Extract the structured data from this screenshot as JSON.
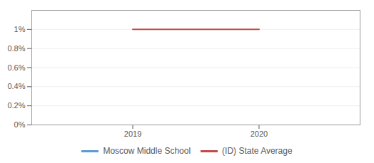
{
  "chart_data": {
    "type": "line",
    "x": [
      2019,
      2020
    ],
    "series": [
      {
        "name": "Moscow Middle School",
        "color": "#5b9bd5",
        "values": [
          null,
          null
        ]
      },
      {
        "name": "(ID) State Average",
        "color": "#be4b48",
        "values": [
          0.01,
          0.01
        ]
      }
    ],
    "xlim": [
      2018.2,
      2020.8
    ],
    "xticks": [
      2019,
      2020
    ],
    "ylim": [
      0,
      0.012
    ],
    "yticks": [
      {
        "value": 0,
        "label": "0%"
      },
      {
        "value": 0.002,
        "label": "0.2%"
      },
      {
        "value": 0.004,
        "label": "0.4%"
      },
      {
        "value": 0.006,
        "label": "0.6%"
      },
      {
        "value": 0.008,
        "label": "0.8%"
      },
      {
        "value": 0.01,
        "label": "1%"
      }
    ],
    "grid": true,
    "legend": "bottom"
  }
}
